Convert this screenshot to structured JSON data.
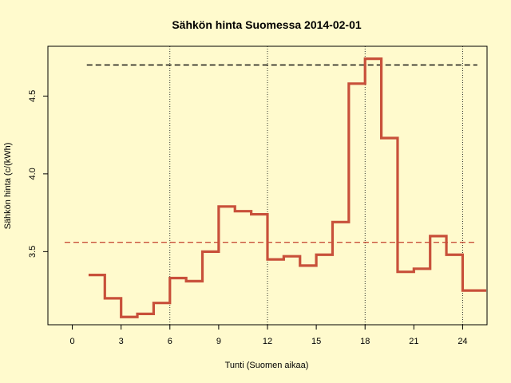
{
  "chart_data": {
    "type": "line",
    "step": true,
    "title": "Sähkön hinta Suomessa 2014-02-01",
    "xlabel": "Tunti (Suomen aikaa)",
    "ylabel": "Sähkön hinta (c/(kWh)",
    "xlim": [
      -1.5,
      25.5
    ],
    "ylim": [
      3.03,
      4.82
    ],
    "x_ticks": [
      0,
      3,
      6,
      9,
      12,
      15,
      18,
      21,
      24
    ],
    "y_ticks": [
      3.5,
      4.0,
      4.5
    ],
    "vertical_gridlines": [
      6,
      12,
      18,
      24
    ],
    "grid": "dotted vertical lines at 6, 12, 18, 24",
    "reference_lines": [
      {
        "value": 4.7,
        "style": "dashed",
        "color": "#000000"
      },
      {
        "value": 3.56,
        "style": "dashed",
        "color": "#c8503a"
      }
    ],
    "series": [
      {
        "color": "#c8503a",
        "x": [
          1,
          2,
          3,
          4,
          5,
          6,
          7,
          8,
          9,
          10,
          11,
          12,
          13,
          14,
          15,
          16,
          17,
          18,
          19,
          20,
          21,
          22,
          23,
          24,
          25
        ],
        "values": [
          3.35,
          3.2,
          3.08,
          3.1,
          3.17,
          3.33,
          3.31,
          3.5,
          3.79,
          3.76,
          3.74,
          3.45,
          3.47,
          3.41,
          3.48,
          3.69,
          4.58,
          4.74,
          4.23,
          3.37,
          3.39,
          3.6,
          3.48,
          3.25,
          3.25
        ]
      }
    ]
  }
}
